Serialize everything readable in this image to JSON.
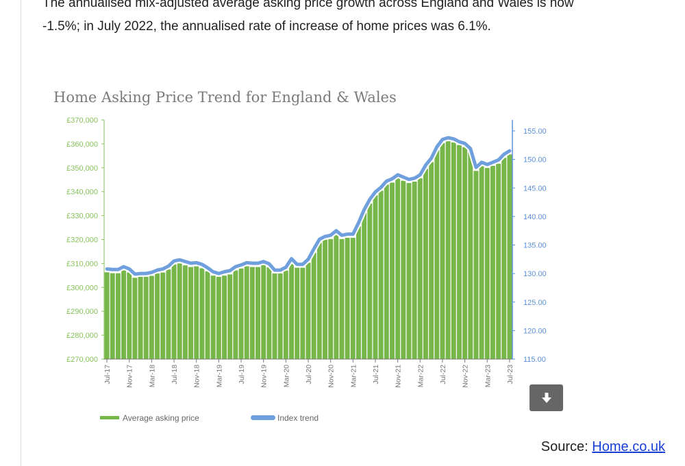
{
  "article": {
    "paragraph_line1": "The annualised mix-adjusted average asking price growth across England and Wales is now",
    "paragraph_line2": "-1.5%; in July 2022, the annualised rate of increase of home prices was 6.1%."
  },
  "download_button": {
    "icon": "download-arrow-icon"
  },
  "source": {
    "label": "Source:",
    "link_text": "Home.co.uk"
  },
  "colors": {
    "bars": "#77b74a",
    "index_line": "#6f9fdc",
    "left_axis": "#86c25a",
    "right_axis": "#5b8fd8"
  },
  "chart_data": {
    "type": "bar+line",
    "title": "Home Asking Price Trend for England & Wales",
    "legend_position": "bottom-left",
    "grid": false,
    "left_axis": {
      "ylim": [
        270000,
        370000
      ],
      "ticks": [
        "£270,000",
        "£280,000",
        "£290,000",
        "£300,000",
        "£310,000",
        "£320,000",
        "£330,000",
        "£340,000",
        "£350,000",
        "£360,000",
        "£370,000"
      ]
    },
    "right_axis": {
      "ylim": [
        115,
        155
      ],
      "ticks": [
        "115.00",
        "120.00",
        "125.00",
        "130.00",
        "135.00",
        "140.00",
        "145.00",
        "150.00",
        "155.00"
      ]
    },
    "x_tick_labels": [
      "Jul-17",
      "Nov-17",
      "Mar-18",
      "Jul-18",
      "Nov-18",
      "Mar-19",
      "Jul-19",
      "Nov-19",
      "Mar-20",
      "Jul-20",
      "Nov-20",
      "Mar-21",
      "Jul-21",
      "Nov-21",
      "Mar-22",
      "Jul-22",
      "Nov-22",
      "Mar-23",
      "Jul-23"
    ],
    "x_start": "Jul-17",
    "x_end": "Jul-23",
    "series": [
      {
        "name": "Average asking price",
        "type": "bar",
        "axis": "left",
        "values": [
          306300,
          305900,
          305900,
          307100,
          306200,
          304000,
          304400,
          304400,
          304800,
          305800,
          306200,
          307500,
          309600,
          310000,
          309200,
          308500,
          308800,
          308000,
          306700,
          304900,
          304400,
          304900,
          305400,
          307100,
          307900,
          308800,
          308500,
          308500,
          309300,
          308400,
          305800,
          305800,
          307000,
          310600,
          308200,
          308200,
          310300,
          314500,
          318600,
          319900,
          320200,
          322100,
          320200,
          320700,
          320700,
          325500,
          331100,
          335100,
          338500,
          340400,
          343000,
          343800,
          345600,
          344600,
          343600,
          344200,
          345600,
          349500,
          352400,
          357300,
          360300,
          361100,
          360600,
          359500,
          358600,
          356600,
          348700,
          350900,
          349900,
          350800,
          351700,
          354200,
          355600
        ]
      },
      {
        "name": "Index trend",
        "type": "line",
        "axis": "right",
        "values": [
          130.8,
          130.7,
          130.7,
          131.2,
          130.8,
          129.9,
          130.0,
          130.0,
          130.2,
          130.6,
          130.8,
          131.3,
          132.2,
          132.4,
          132.1,
          131.8,
          131.9,
          131.6,
          131.0,
          130.3,
          130.0,
          130.3,
          130.5,
          131.2,
          131.5,
          131.9,
          131.8,
          131.8,
          132.1,
          131.7,
          130.6,
          130.6,
          131.1,
          132.6,
          131.6,
          131.6,
          132.5,
          134.3,
          136.0,
          136.5,
          136.7,
          137.5,
          136.7,
          136.9,
          136.9,
          138.9,
          141.2,
          143.0,
          144.3,
          145.1,
          146.2,
          146.6,
          147.3,
          146.9,
          146.5,
          146.7,
          147.3,
          149.0,
          150.2,
          152.2,
          153.5,
          153.8,
          153.6,
          153.1,
          152.8,
          151.9,
          148.6,
          149.5,
          149.1,
          149.5,
          149.9,
          150.9,
          151.5
        ]
      }
    ]
  }
}
